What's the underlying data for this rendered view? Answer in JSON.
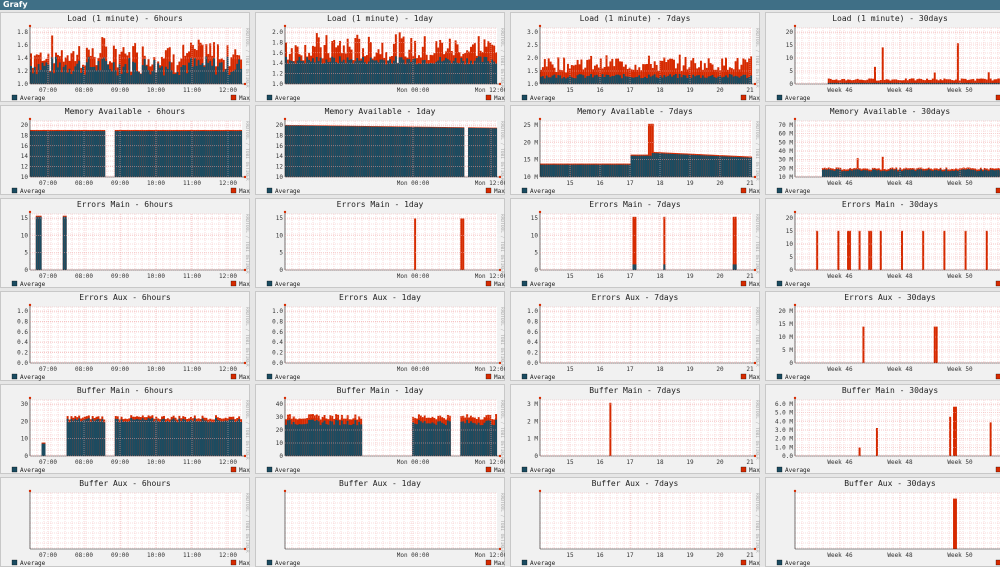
{
  "window": {
    "title": "Grafy"
  },
  "colors": {
    "average": "#1b4c61",
    "max": "#d62a00",
    "grid": "#f0a9a9",
    "background": "#ffffff"
  },
  "legend": {
    "average": "Average",
    "max": "Max"
  },
  "watermark": "RRDTOOL / TOBI OETIKER",
  "periods": [
    "6hours",
    "1day",
    "7days",
    "30days"
  ],
  "xticks": {
    "6hours": [
      "07:00",
      "08:00",
      "09:00",
      "10:00",
      "11:00",
      "12:00"
    ],
    "1day": [
      "Mon 00:00",
      "Mon 12:00"
    ],
    "7days": [
      "15",
      "16",
      "17",
      "18",
      "19",
      "20",
      "21"
    ],
    "30days": [
      "Week 46",
      "Week 48",
      "Week 50"
    ]
  },
  "rows": [
    {
      "metric": "Load (1 minute)",
      "yticks": {
        "6hours": [
          "1.0",
          "1.2",
          "1.4",
          "1.6",
          "1.8"
        ],
        "1day": [
          "1.0",
          "1.2",
          "1.4",
          "1.6",
          "1.8",
          "2.0"
        ],
        "7days": [
          "1.0",
          "1.5",
          "2.0",
          "2.5",
          "3.0"
        ],
        "30days": [
          "0",
          "5",
          "10",
          "15",
          "20"
        ]
      }
    },
    {
      "metric": "Memory Available",
      "yticks": {
        "6hours": [
          "10",
          "12",
          "14",
          "16",
          "18",
          "20"
        ],
        "1day": [
          "10",
          "12",
          "14",
          "16",
          "18",
          "20"
        ],
        "7days": [
          "10 M",
          "15 M",
          "20 M",
          "25 M"
        ],
        "30days": [
          "10 M",
          "20 M",
          "30 M",
          "40 M",
          "50 M",
          "60 M",
          "70 M"
        ]
      }
    },
    {
      "metric": "Errors Main",
      "yticks": {
        "6hours": [
          "0",
          "5",
          "10",
          "15"
        ],
        "1day": [
          "0",
          "5",
          "10",
          "15"
        ],
        "7days": [
          "0",
          "5",
          "10",
          "15"
        ],
        "30days": [
          "0",
          "5",
          "10",
          "15",
          "20"
        ]
      }
    },
    {
      "metric": "Errors Aux",
      "yticks": {
        "6hours": [
          "0.0",
          "0.2",
          "0.4",
          "0.6",
          "0.8",
          "1.0"
        ],
        "1day": [
          "0.0",
          "0.2",
          "0.4",
          "0.6",
          "0.8",
          "1.0"
        ],
        "7days": [
          "0.0",
          "0.2",
          "0.4",
          "0.6",
          "0.8",
          "1.0"
        ],
        "30days": [
          "0",
          "5 M",
          "10 M",
          "15 M",
          "20 M"
        ]
      }
    },
    {
      "metric": "Buffer Main",
      "yticks": {
        "6hours": [
          "0",
          "10",
          "20",
          "30"
        ],
        "1day": [
          "0",
          "10",
          "20",
          "30",
          "40"
        ],
        "7days": [
          "0",
          "1 M",
          "2 M",
          "3 M"
        ],
        "30days": [
          "0.0",
          "1.0 M",
          "2.0 M",
          "3.0 M",
          "4.0 M",
          "5.0 M",
          "6.0 M"
        ]
      }
    },
    {
      "metric": "Buffer Aux",
      "yticks": {
        "6hours": [],
        "1day": [],
        "7days": [],
        "30days": []
      }
    }
  ]
}
